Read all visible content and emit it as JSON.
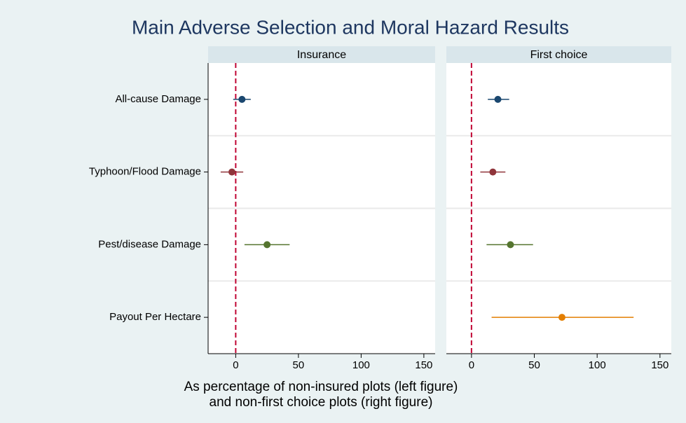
{
  "title": "Main Adverse Selection and Moral Hazard Results",
  "x_label": [
    "As percentage of non-insured plots (left figure)",
    "and non-first choice plots (right figure)"
  ],
  "chart_data": [
    {
      "type": "dot",
      "title": "Insurance",
      "categories": [
        "All-cause Damage",
        "Typhoon/Flood Damage",
        "Pest/disease Damage",
        "Payout Per Hectare"
      ],
      "values": [
        5,
        -3,
        25,
        null
      ],
      "lower": [
        -2,
        -12,
        7,
        null
      ],
      "upper": [
        12,
        6,
        43,
        null
      ],
      "colors": [
        "#1a476f",
        "#90353b",
        "#55752f",
        "#e37e00"
      ],
      "xlim": [
        -22,
        159
      ],
      "xticks": [
        0,
        50,
        100,
        150
      ],
      "reference_line": 0,
      "reference_color": "#c10534"
    },
    {
      "type": "dot",
      "title": "First choice",
      "values": [
        21,
        17,
        31,
        72
      ],
      "lower": [
        13,
        7,
        12,
        16
      ],
      "upper": [
        30,
        27,
        49,
        129
      ],
      "colors": [
        "#1a476f",
        "#90353b",
        "#55752f",
        "#e37e00"
      ],
      "xlim": [
        -20,
        159
      ],
      "xticks": [
        0,
        50,
        100,
        150
      ],
      "reference_line": 0,
      "reference_color": "#c10534"
    }
  ]
}
